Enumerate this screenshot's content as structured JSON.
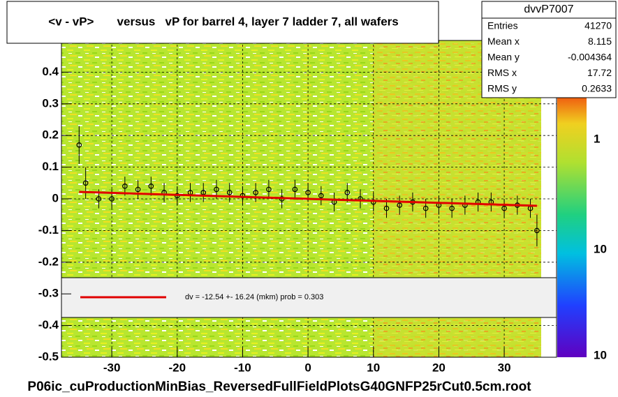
{
  "chart_data": {
    "type": "scatter",
    "title": "<v - vP>       versus   vP for barrel 4, layer 7 ladder 7, all wafers",
    "footer": "P06ic_cuProductionMinBias_ReversedFullFieldPlotsG40GNFP25rCut0.5cm.root",
    "legend_text": "dv =  -12.54 +- 16.24 (mkm) prob = 0.303",
    "stats": {
      "title": "dvvP7007",
      "rows": [
        [
          "Entries",
          "41270"
        ],
        [
          "Mean x",
          "8.115"
        ],
        [
          "Mean y",
          "-0.004364"
        ],
        [
          "RMS x",
          "17.72"
        ],
        [
          "RMS y",
          "0.2633"
        ]
      ]
    },
    "color_scale_labels": [
      "1",
      "10",
      "10"
    ],
    "xlim": [
      -37.7,
      38
    ],
    "ylim": [
      -0.5,
      0.5
    ],
    "xticks": [
      -30,
      -20,
      -10,
      0,
      10,
      20,
      30
    ],
    "yticks": [
      -0.5,
      -0.4,
      -0.3,
      -0.2,
      -0.1,
      0,
      0.1,
      0.2,
      0.3,
      0.4
    ],
    "grid": true,
    "series": [
      {
        "name": "profile",
        "color": "#000000",
        "x": [
          -35,
          -34,
          -32,
          -30,
          -28,
          -26,
          -24,
          -22,
          -20,
          -18,
          -16,
          -14,
          -12,
          -10,
          -8,
          -6,
          -4,
          -2,
          0,
          2,
          4,
          6,
          8,
          10,
          12,
          14,
          16,
          18,
          20,
          22,
          24,
          26,
          28,
          30,
          32,
          34,
          35
        ],
        "values": [
          0.17,
          0.05,
          0.0,
          0.0,
          0.04,
          0.03,
          0.04,
          0.02,
          0.01,
          0.02,
          0.02,
          0.03,
          0.02,
          0.01,
          0.02,
          0.03,
          0.0,
          0.03,
          0.02,
          0.01,
          -0.01,
          0.02,
          0.0,
          -0.01,
          -0.03,
          -0.02,
          -0.01,
          -0.03,
          -0.02,
          -0.03,
          -0.02,
          -0.01,
          -0.01,
          -0.03,
          -0.02,
          -0.03,
          -0.1
        ],
        "errors": [
          0.06,
          0.05,
          0.03,
          0.03,
          0.03,
          0.03,
          0.03,
          0.03,
          0.03,
          0.03,
          0.03,
          0.03,
          0.03,
          0.03,
          0.03,
          0.03,
          0.03,
          0.03,
          0.03,
          0.03,
          0.03,
          0.03,
          0.03,
          0.03,
          0.03,
          0.03,
          0.03,
          0.03,
          0.03,
          0.03,
          0.03,
          0.03,
          0.03,
          0.03,
          0.03,
          0.03,
          0.05
        ]
      },
      {
        "name": "fit",
        "color": "#e00000",
        "x": [
          -35,
          35
        ],
        "values": [
          0.022,
          -0.022
        ]
      }
    ]
  }
}
